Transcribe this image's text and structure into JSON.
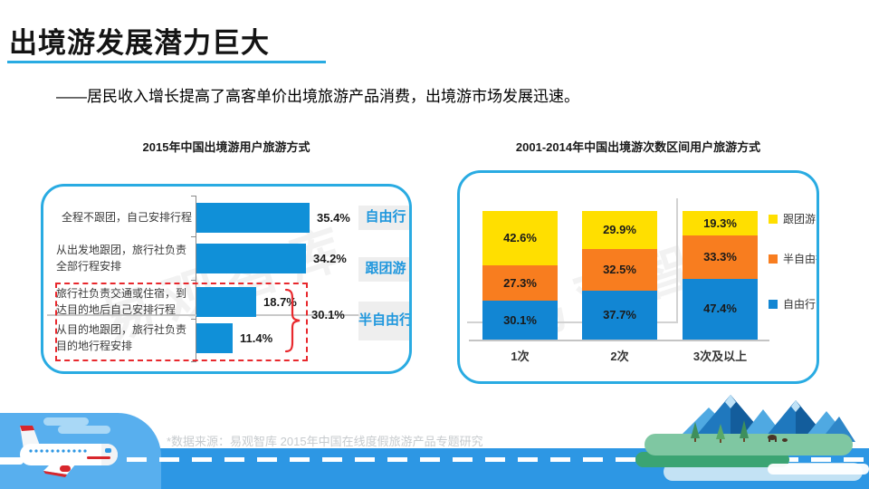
{
  "slide": {
    "title": "出境游发展潜力巨大",
    "subtitle": "——居民收入增长提高了高客单价出境旅游产品消费，出境游市场发展迅速。",
    "footnote": "*数据来源：易观智库 2015年中国在线度假旅游产品专题研究",
    "watermark": "易观智库"
  },
  "colors": {
    "accent_blue": "#29ABE2",
    "bar_blue": "#1090D8",
    "stack_blue": "#1286D3",
    "stack_orange": "#F87D1F",
    "stack_yellow": "#FFDF00",
    "highlight_red": "#E8282D",
    "band_blue": "#2D97E4"
  },
  "chart_data": [
    {
      "type": "bar",
      "orientation": "horizontal",
      "title": "2015年中国出境游用户旅游方式",
      "categories": [
        "全程不跟团，自己安排行程",
        "从出发地跟团，旅行社负责全部行程安排",
        "旅行社负责交通或住宿，到达目的地后自己安排行程",
        "从目的地跟团，旅行社负责目的地行程安排"
      ],
      "values": [
        35.4,
        34.2,
        18.7,
        11.4
      ],
      "value_labels": [
        "35.4%",
        "34.2%",
        "18.7%",
        "11.4%"
      ],
      "bar_color": "#1090D8",
      "xlim": [
        0,
        40
      ],
      "category_group_labels": [
        "自由行",
        "跟团游",
        "半自由行"
      ],
      "grouped_rows": [
        2,
        3
      ],
      "grouped_total_label": "30.1%",
      "grouped_total_value": 30.1
    },
    {
      "type": "stacked-bar",
      "title": "2001-2014年中国出境游次数区间用户旅游方式",
      "categories": [
        "1次",
        "2次",
        "3次及以上"
      ],
      "series": [
        {
          "name": "自由行",
          "color": "#1286D3",
          "values": [
            30.1,
            37.7,
            47.4
          ],
          "labels": [
            "30.1%",
            "37.7%",
            "47.4%"
          ]
        },
        {
          "name": "半自由行",
          "color": "#F87D1F",
          "values": [
            27.3,
            32.5,
            33.3
          ],
          "labels": [
            "27.3%",
            "32.5%",
            "33.3%"
          ]
        },
        {
          "name": "跟团游",
          "color": "#FFDF00",
          "values": [
            42.6,
            29.9,
            19.3
          ],
          "labels": [
            "42.6%",
            "29.9%",
            "19.3%"
          ]
        }
      ],
      "legend": [
        "跟团游",
        "半自由行",
        "自由行"
      ],
      "ylim": [
        0,
        100
      ],
      "legend_position": "right"
    }
  ]
}
